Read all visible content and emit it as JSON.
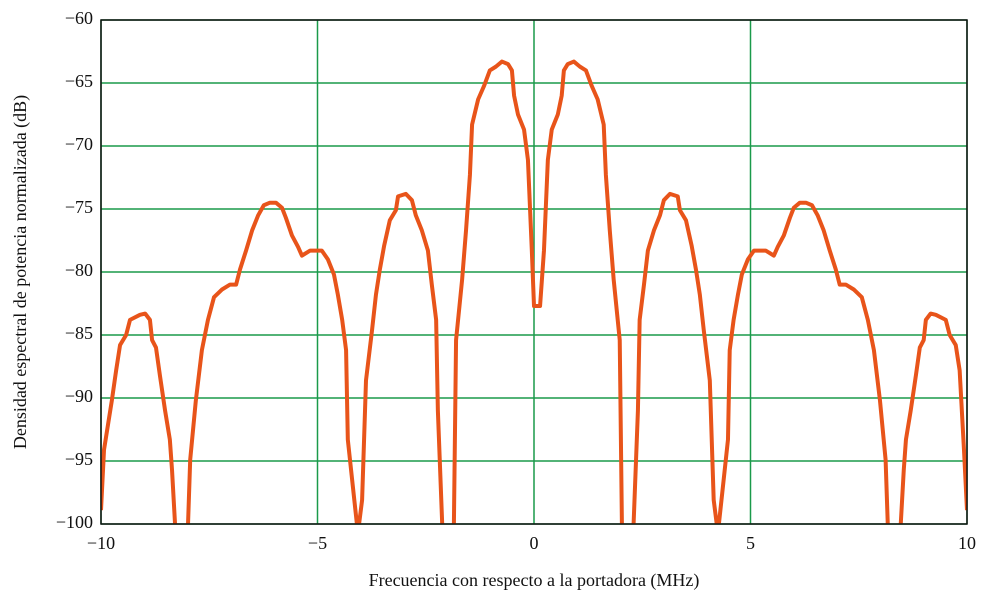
{
  "chart_data": {
    "type": "line",
    "xlabel": "Frecuencia con respecto a la portadora (MHz)",
    "ylabel": "Densidad espectral de potencia normalizada (dB)",
    "xlim": [
      -10,
      10
    ],
    "ylim": [
      -100,
      -60
    ],
    "xticks": [
      {
        "value": -10,
        "label": "−10"
      },
      {
        "value": -5,
        "label": "−5"
      },
      0,
      5,
      10
    ],
    "yticks": [
      {
        "value": -60,
        "label": "−60"
      },
      {
        "value": -65,
        "label": "−65"
      },
      {
        "value": -70,
        "label": "−70"
      },
      {
        "value": -75,
        "label": "−75"
      },
      {
        "value": -80,
        "label": "−80"
      },
      {
        "value": -85,
        "label": "−85"
      },
      {
        "value": -90,
        "label": "−90"
      },
      {
        "value": -95,
        "label": "−95"
      },
      {
        "value": -100,
        "label": "−100"
      }
    ],
    "grid": true,
    "grid_color": "#1a9a4a",
    "series": [
      {
        "color": "#e8541a",
        "x": [
          -10,
          -9.93,
          -9.75,
          -9.65,
          -9.56,
          -9.42,
          -9.33,
          -9.1,
          -8.98,
          -8.87,
          -8.82,
          -8.73,
          -8.64,
          -8.52,
          -8.41,
          -8.36,
          -8.29,
          null,
          -7.99,
          -7.94,
          -7.81,
          -7.67,
          -7.53,
          -7.39,
          -7.21,
          -7.02,
          -6.88,
          -6.79,
          -6.65,
          -6.51,
          -6.37,
          -6.24,
          -6.1,
          -5.96,
          -5.82,
          -5.73,
          -5.59,
          -5.45,
          -5.36,
          -5.17,
          -5.03,
          -4.9,
          -4.76,
          -4.62,
          -4.53,
          -4.43,
          -4.34,
          -4.3,
          -4.2,
          -4.09,
          null,
          -4.04,
          -3.97,
          -3.88,
          -3.74,
          -3.65,
          -3.56,
          -3.46,
          -3.33,
          -3.19,
          -3.14,
          -2.96,
          -2.82,
          -2.73,
          -2.59,
          -2.45,
          -2.36,
          -2.26,
          -2.22,
          -2.12,
          null,
          -1.85,
          -1.8,
          -1.66,
          -1.57,
          -1.48,
          -1.43,
          -1.29,
          -1.15,
          -1.02,
          -0.88,
          -0.74,
          -0.6,
          -0.51,
          -0.46,
          -0.37,
          -0.23,
          -0.14,
          -0.05,
          0,
          0.14,
          0.23,
          0.32,
          0.41,
          0.55,
          0.64,
          0.69,
          0.78,
          0.92,
          1.06,
          1.2,
          1.33,
          1.47,
          1.61,
          1.66,
          1.75,
          1.84,
          1.98,
          2.03,
          null,
          2.3,
          2.4,
          2.44,
          2.54,
          2.63,
          2.77,
          2.91,
          3,
          3.14,
          3.32,
          3.37,
          3.51,
          3.64,
          3.74,
          3.83,
          3.92,
          4.06,
          4.15,
          4.22,
          null,
          4.27,
          4.38,
          4.48,
          4.52,
          4.61,
          4.71,
          4.8,
          4.94,
          5.08,
          5.21,
          5.35,
          5.54,
          5.63,
          5.77,
          5.91,
          6,
          6.14,
          6.28,
          6.42,
          6.55,
          6.69,
          6.83,
          6.97,
          7.06,
          7.2,
          7.39,
          7.57,
          7.71,
          7.85,
          7.99,
          8.12,
          8.17,
          null,
          8.47,
          8.54,
          8.59,
          8.7,
          8.82,
          8.91,
          9,
          9.05,
          9.16,
          9.28,
          9.51,
          9.6,
          9.74,
          9.83,
          9.93,
          10
        ],
        "values": [
          -98.9,
          -94.1,
          -90.2,
          -87.8,
          -85.8,
          -85,
          -83.8,
          -83.4,
          -83.3,
          -83.8,
          -85.4,
          -86,
          -88.2,
          -91,
          -93.3,
          -95.7,
          -100,
          null,
          -100,
          -94.9,
          -90.2,
          -86.2,
          -83.8,
          -82,
          -81.4,
          -81,
          -81,
          -79.8,
          -78.3,
          -76.7,
          -75.5,
          -74.7,
          -74.5,
          -74.5,
          -74.9,
          -75.7,
          -77.1,
          -78,
          -78.7,
          -78.3,
          -78.3,
          -78.3,
          -79,
          -80.2,
          -81.8,
          -83.8,
          -86.2,
          -93.3,
          -96.5,
          -100,
          null,
          -100,
          -98.1,
          -88.6,
          -84.6,
          -81.8,
          -79.8,
          -77.9,
          -75.9,
          -75.1,
          -74,
          -73.8,
          -74.3,
          -75.5,
          -76.7,
          -78.3,
          -81,
          -83.8,
          -91,
          -100,
          null,
          -100,
          -85.4,
          -80.6,
          -76.7,
          -72.3,
          -68.3,
          -66.3,
          -65.2,
          -64,
          -63.7,
          -63.3,
          -63.5,
          -64,
          -66,
          -67.5,
          -68.7,
          -71.1,
          -78.3,
          -82.7,
          -82.7,
          -78.3,
          -71.1,
          -68.7,
          -67.5,
          -66,
          -64,
          -63.5,
          -63.3,
          -63.7,
          -64,
          -65.2,
          -66.3,
          -68.3,
          -72.3,
          -76.7,
          -80.6,
          -85.4,
          -100,
          null,
          -100,
          -91,
          -83.8,
          -81,
          -78.3,
          -76.7,
          -75.5,
          -74.3,
          -73.8,
          -74,
          -75.1,
          -75.9,
          -77.9,
          -79.8,
          -81.8,
          -84.6,
          -88.6,
          -98.1,
          -100,
          null,
          -100,
          -96.5,
          -93.3,
          -86.2,
          -83.8,
          -81.8,
          -80.2,
          -79,
          -78.3,
          -78.3,
          -78.3,
          -78.7,
          -78,
          -77.1,
          -75.7,
          -74.9,
          -74.5,
          -74.5,
          -74.7,
          -75.5,
          -76.7,
          -78.3,
          -79.8,
          -81,
          -81,
          -81.4,
          -82,
          -83.8,
          -86.2,
          -90.2,
          -94.9,
          -100,
          null,
          -100,
          -95.7,
          -93.3,
          -91,
          -88.2,
          -86,
          -85.4,
          -83.8,
          -83.3,
          -83.4,
          -83.8,
          -85,
          -85.8,
          -87.8,
          -94.1,
          -98.9
        ]
      }
    ]
  }
}
